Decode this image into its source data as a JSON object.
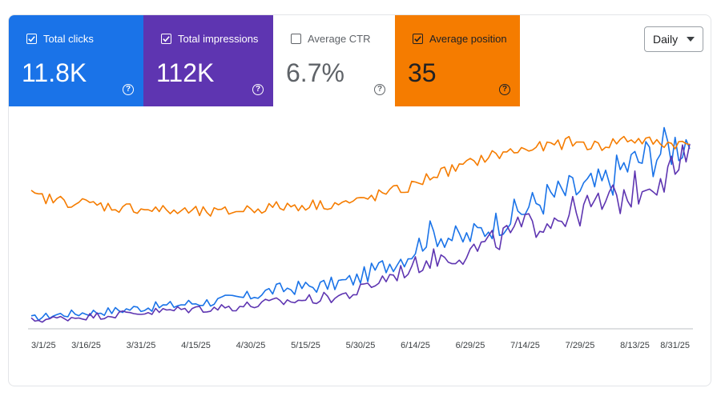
{
  "cards": [
    {
      "label": "Total clicks",
      "value": "11.8K",
      "checked": true
    },
    {
      "label": "Total impressions",
      "value": "112K",
      "checked": true
    },
    {
      "label": "Average CTR",
      "value": "6.7%",
      "checked": false
    },
    {
      "label": "Average position",
      "value": "35",
      "checked": true
    }
  ],
  "range_select": {
    "value": "Daily"
  },
  "colors": {
    "clicks": "#1a73e8",
    "impressions": "#5e35b1",
    "position": "#f57c00"
  },
  "chart_data": {
    "type": "line",
    "title": "",
    "xlabel": "",
    "ylabel": "",
    "x_tick_labels": [
      "3/1/25",
      "3/16/25",
      "3/31/25",
      "4/15/25",
      "4/30/25",
      "5/15/25",
      "5/30/25",
      "6/14/25",
      "6/29/25",
      "7/14/25",
      "7/29/25",
      "8/13/25",
      "8/31/25"
    ],
    "x_range": [
      "2025-03-01",
      "2025-08-31"
    ],
    "grid": false,
    "legend": "none",
    "series": [
      {
        "key": "clicks",
        "color": "#1a73e8",
        "points": [
          [
            "2025-03-01",
            4
          ],
          [
            "2025-03-08",
            8
          ],
          [
            "2025-03-16",
            10
          ],
          [
            "2025-03-24",
            12
          ],
          [
            "2025-03-31",
            15
          ],
          [
            "2025-04-08",
            17
          ],
          [
            "2025-04-15",
            20
          ],
          [
            "2025-04-22",
            22
          ],
          [
            "2025-04-30",
            26
          ],
          [
            "2025-05-07",
            33
          ],
          [
            "2025-05-15",
            36
          ],
          [
            "2025-05-22",
            38
          ],
          [
            "2025-05-30",
            44
          ],
          [
            "2025-06-07",
            58
          ],
          [
            "2025-06-14",
            70
          ],
          [
            "2025-06-20",
            92
          ],
          [
            "2025-06-29",
            85
          ],
          [
            "2025-07-06",
            98
          ],
          [
            "2025-07-14",
            112
          ],
          [
            "2025-07-22",
            128
          ],
          [
            "2025-07-29",
            135
          ],
          [
            "2025-08-06",
            140
          ],
          [
            "2025-08-13",
            160
          ],
          [
            "2025-08-22",
            175
          ],
          [
            "2025-08-31",
            190
          ]
        ]
      },
      {
        "key": "impressions",
        "color": "#5e35b1",
        "points": [
          [
            "2025-03-01",
            2
          ],
          [
            "2025-03-08",
            4
          ],
          [
            "2025-03-16",
            6
          ],
          [
            "2025-03-24",
            8
          ],
          [
            "2025-03-31",
            10
          ],
          [
            "2025-04-08",
            12
          ],
          [
            "2025-04-15",
            14
          ],
          [
            "2025-04-22",
            15
          ],
          [
            "2025-04-30",
            17
          ],
          [
            "2025-05-07",
            20
          ],
          [
            "2025-05-15",
            23
          ],
          [
            "2025-05-22",
            25
          ],
          [
            "2025-05-30",
            30
          ],
          [
            "2025-06-07",
            45
          ],
          [
            "2025-06-14",
            55
          ],
          [
            "2025-06-20",
            65
          ],
          [
            "2025-06-29",
            70
          ],
          [
            "2025-07-06",
            80
          ],
          [
            "2025-07-14",
            95
          ],
          [
            "2025-07-22",
            105
          ],
          [
            "2025-07-29",
            112
          ],
          [
            "2025-08-06",
            120
          ],
          [
            "2025-08-13",
            130
          ],
          [
            "2025-08-22",
            150
          ],
          [
            "2025-08-31",
            165
          ]
        ]
      },
      {
        "key": "position",
        "color": "#f57c00",
        "points": [
          [
            "2025-03-01",
            130
          ],
          [
            "2025-03-08",
            125
          ],
          [
            "2025-03-16",
            122
          ],
          [
            "2025-03-24",
            118
          ],
          [
            "2025-03-31",
            117
          ],
          [
            "2025-04-08",
            114
          ],
          [
            "2025-04-15",
            113
          ],
          [
            "2025-04-22",
            112
          ],
          [
            "2025-04-30",
            116
          ],
          [
            "2025-05-07",
            118
          ],
          [
            "2025-05-15",
            120
          ],
          [
            "2025-05-22",
            121
          ],
          [
            "2025-05-30",
            123
          ],
          [
            "2025-06-07",
            132
          ],
          [
            "2025-06-14",
            138
          ],
          [
            "2025-06-20",
            150
          ],
          [
            "2025-06-29",
            160
          ],
          [
            "2025-07-06",
            170
          ],
          [
            "2025-07-14",
            176
          ],
          [
            "2025-07-22",
            180
          ],
          [
            "2025-07-29",
            185
          ],
          [
            "2025-08-06",
            180
          ],
          [
            "2025-08-13",
            188
          ],
          [
            "2025-08-22",
            184
          ],
          [
            "2025-08-31",
            182
          ]
        ]
      }
    ]
  }
}
